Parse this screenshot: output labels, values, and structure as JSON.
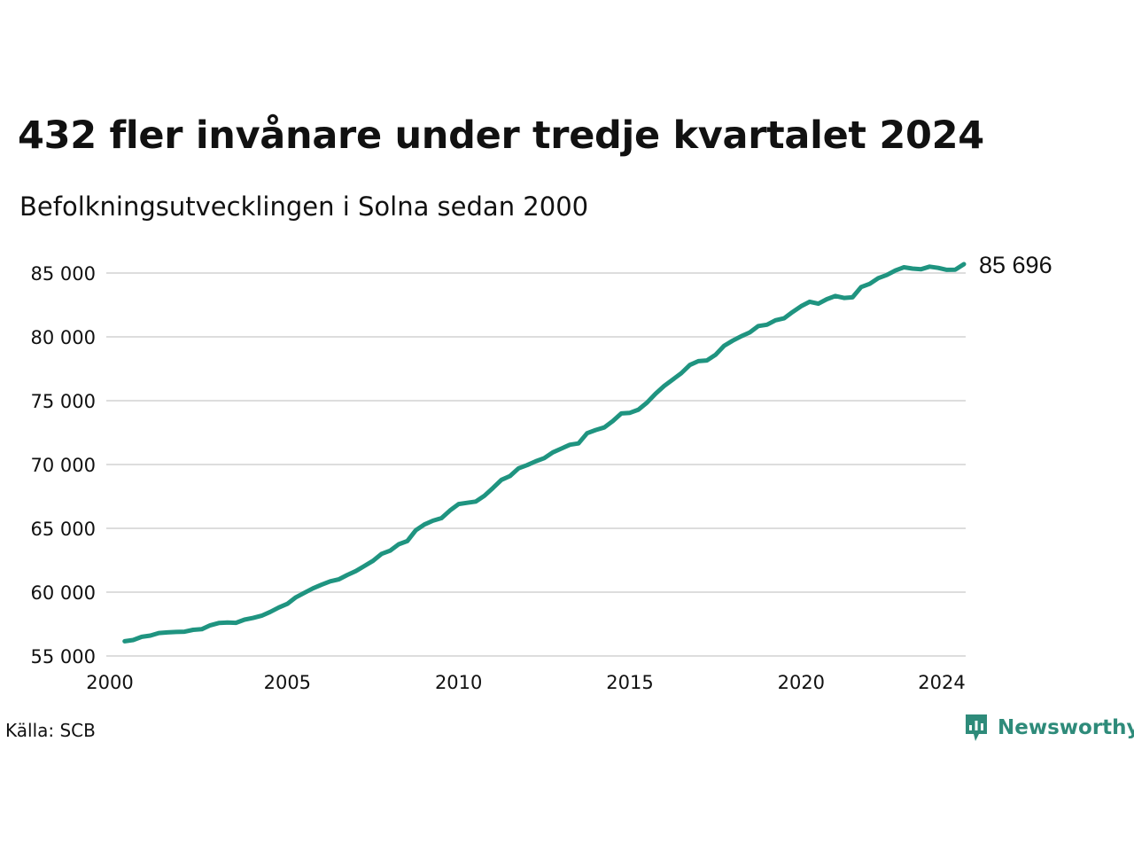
{
  "header": {
    "title": "432 fler invånare under tredje kvartalet 2024",
    "subtitle": "Befolkningsutvecklingen i Solna sedan 2000"
  },
  "footer": {
    "source": "Källa: SCB",
    "brand": "Newsworthy",
    "brand_icon": "bar-chart-speech-bubble-icon"
  },
  "colors": {
    "line": "#1f9480",
    "grid": "#dddddd",
    "brand": "#2e8b7a"
  },
  "chart_data": {
    "type": "line",
    "title": "432 fler invånare under tredje kvartalet 2024",
    "subtitle": "Befolkningsutvecklingen i Solna sedan 2000",
    "xlabel": "",
    "ylabel": "",
    "xlim": [
      2000,
      2024.75
    ],
    "ylim": [
      55000,
      86000
    ],
    "x_ticks": [
      2000,
      2005,
      2010,
      2015,
      2020,
      2024
    ],
    "y_ticks": [
      55000,
      60000,
      65000,
      70000,
      75000,
      80000,
      85000
    ],
    "y_tick_labels": [
      "55 000",
      "60 000",
      "65 000",
      "70 000",
      "75 000",
      "80 000",
      "85 000"
    ],
    "grid": "horizontal",
    "end_label": "85 696",
    "series": [
      {
        "values": [
          [
            2000.25,
            56150
          ],
          [
            2000.5,
            56250
          ],
          [
            2000.75,
            56500
          ],
          [
            2001.0,
            56600
          ],
          [
            2001.25,
            56800
          ],
          [
            2001.5,
            56850
          ],
          [
            2001.75,
            56880
          ],
          [
            2002.0,
            56900
          ],
          [
            2002.25,
            57050
          ],
          [
            2002.5,
            57100
          ],
          [
            2002.75,
            57400
          ],
          [
            2003.0,
            57580
          ],
          [
            2003.25,
            57620
          ],
          [
            2003.5,
            57600
          ],
          [
            2003.75,
            57850
          ],
          [
            2004.0,
            57980
          ],
          [
            2004.25,
            58150
          ],
          [
            2004.5,
            58450
          ],
          [
            2004.75,
            58800
          ],
          [
            2005.0,
            59080
          ],
          [
            2005.25,
            59600
          ],
          [
            2005.5,
            59950
          ],
          [
            2005.75,
            60300
          ],
          [
            2006.0,
            60580
          ],
          [
            2006.25,
            60850
          ],
          [
            2006.5,
            61000
          ],
          [
            2006.75,
            61350
          ],
          [
            2007.0,
            61650
          ],
          [
            2007.25,
            62050
          ],
          [
            2007.5,
            62450
          ],
          [
            2007.75,
            63000
          ],
          [
            2008.0,
            63250
          ],
          [
            2008.25,
            63750
          ],
          [
            2008.5,
            64000
          ],
          [
            2008.75,
            64850
          ],
          [
            2009.0,
            65300
          ],
          [
            2009.25,
            65600
          ],
          [
            2009.5,
            65800
          ],
          [
            2009.75,
            66400
          ],
          [
            2010.0,
            66900
          ],
          [
            2010.25,
            67000
          ],
          [
            2010.5,
            67100
          ],
          [
            2010.75,
            67550
          ],
          [
            2011.0,
            68150
          ],
          [
            2011.25,
            68800
          ],
          [
            2011.5,
            69100
          ],
          [
            2011.75,
            69700
          ],
          [
            2012.0,
            69950
          ],
          [
            2012.25,
            70250
          ],
          [
            2012.5,
            70500
          ],
          [
            2012.75,
            70950
          ],
          [
            2013.0,
            71250
          ],
          [
            2013.25,
            71550
          ],
          [
            2013.5,
            71650
          ],
          [
            2013.75,
            72450
          ],
          [
            2014.0,
            72700
          ],
          [
            2014.25,
            72900
          ],
          [
            2014.5,
            73400
          ],
          [
            2014.75,
            74000
          ],
          [
            2015.0,
            74050
          ],
          [
            2015.25,
            74300
          ],
          [
            2015.5,
            74850
          ],
          [
            2015.75,
            75550
          ],
          [
            2016.0,
            76150
          ],
          [
            2016.25,
            76650
          ],
          [
            2016.5,
            77150
          ],
          [
            2016.75,
            77800
          ],
          [
            2017.0,
            78100
          ],
          [
            2017.25,
            78150
          ],
          [
            2017.5,
            78600
          ],
          [
            2017.75,
            79300
          ],
          [
            2018.0,
            79700
          ],
          [
            2018.25,
            80050
          ],
          [
            2018.5,
            80350
          ],
          [
            2018.75,
            80850
          ],
          [
            2019.0,
            80950
          ],
          [
            2019.25,
            81300
          ],
          [
            2019.5,
            81450
          ],
          [
            2019.75,
            81950
          ],
          [
            2020.0,
            82400
          ],
          [
            2020.25,
            82750
          ],
          [
            2020.5,
            82600
          ],
          [
            2020.75,
            82950
          ],
          [
            2021.0,
            83200
          ],
          [
            2021.25,
            83050
          ],
          [
            2021.5,
            83100
          ],
          [
            2021.75,
            83900
          ],
          [
            2022.0,
            84150
          ],
          [
            2022.25,
            84600
          ],
          [
            2022.5,
            84850
          ],
          [
            2022.75,
            85200
          ],
          [
            2023.0,
            85450
          ],
          [
            2023.25,
            85350
          ],
          [
            2023.5,
            85300
          ],
          [
            2023.75,
            85500
          ],
          [
            2024.0,
            85400
          ],
          [
            2024.25,
            85250
          ],
          [
            2024.5,
            85264
          ],
          [
            2024.75,
            85696
          ]
        ]
      }
    ]
  }
}
